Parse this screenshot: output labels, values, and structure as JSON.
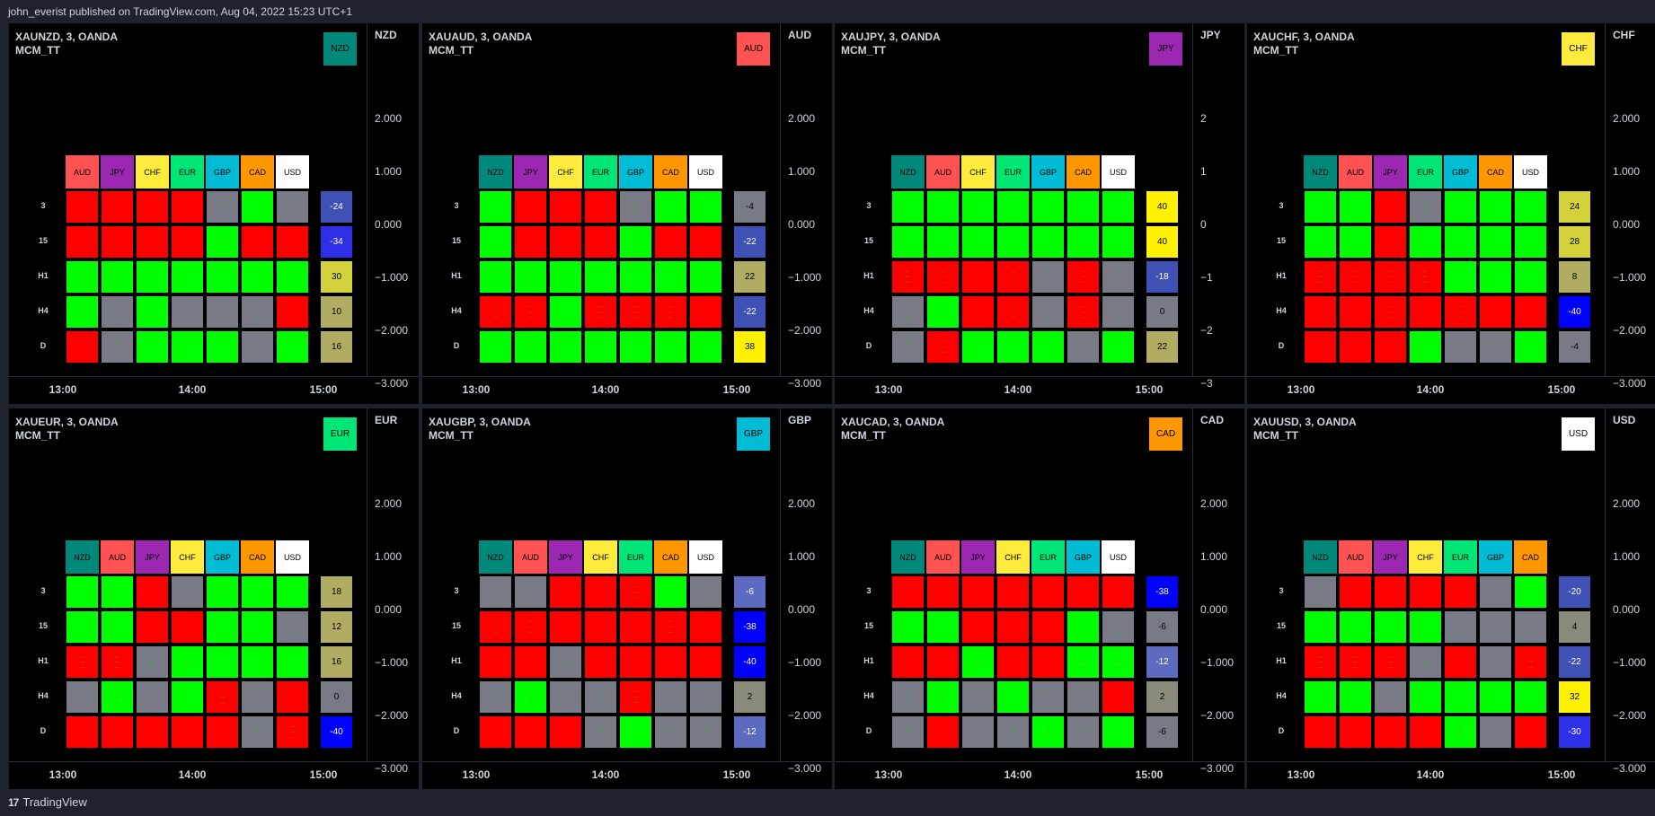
{
  "header": {
    "published": "john_everist published on TradingView.com, Aug 04, 2022 15:23 UTC+1"
  },
  "footer": {
    "brand": "TradingView",
    "logo": "17"
  },
  "colors": {
    "NZD": "#00897b",
    "AUD": "#ff5252",
    "JPY": "#9c27b0",
    "CHF": "#ffeb3b",
    "EUR": "#00e676",
    "GBP": "#00bcd4",
    "CAD": "#ff9800",
    "USD": "#ffffff",
    "G": "#00ff00",
    "R": "#ff0000",
    "N": "#787b86"
  },
  "row_labels": [
    "3",
    "15",
    "H1",
    "H4",
    "D"
  ],
  "time_labels": [
    "13:00",
    "14:00",
    "15:00"
  ],
  "panels": [
    {
      "symbol": "XAUNZD, 3, OANDA",
      "indicator": "MCM_TT",
      "base": "NZD",
      "prices": [
        "2.000",
        "1.000",
        "0.000",
        "−1.000",
        "−2.000",
        "−3.000"
      ],
      "heads": [
        "AUD",
        "JPY",
        "CHF",
        "EUR",
        "GBP",
        "CAD",
        "USD"
      ],
      "grid": [
        "RRRRNGN",
        "RRRRGRR",
        "GGGGGGG",
        "GNGNNNR",
        "RNGGGNG"
      ],
      "marks": [
        "0000101",
        "0000100",
        "1110001",
        "1010110",
        "0100010"
      ],
      "scores": [
        "-24",
        "-34",
        "30",
        "10",
        "16"
      ],
      "score_colors": [
        "#3f51b5",
        "#2f2fe8",
        "#d4d23a",
        "#b0ad62",
        "#b0ad62"
      ]
    },
    {
      "symbol": "XAUAUD, 3, OANDA",
      "indicator": "MCM_TT",
      "base": "AUD",
      "prices": [
        "2.000",
        "1.000",
        "0.000",
        "−1.000",
        "−2.000",
        "−3.000"
      ],
      "heads": [
        "NZD",
        "JPY",
        "CHF",
        "EUR",
        "GBP",
        "CAD",
        "USD"
      ],
      "grid": [
        "GRRRNGG",
        "GRRRGRR",
        "GGGGGGG",
        "RRGRRRR",
        "GGGGGGG"
      ],
      "marks": [
        "0000100",
        "0000100",
        "1110001",
        "1101110",
        "0100000"
      ],
      "scores": [
        "-4",
        "-22",
        "22",
        "-22",
        "38"
      ],
      "score_colors": [
        "#787b86",
        "#3f51b5",
        "#b0ad62",
        "#3f51b5",
        "#fff200"
      ]
    },
    {
      "symbol": "XAUJPY, 3, OANDA",
      "indicator": "MCM_TT",
      "base": "JPY",
      "prices": [
        "2",
        "1",
        "0",
        "−1",
        "−2",
        "−3"
      ],
      "heads": [
        "NZD",
        "AUD",
        "CHF",
        "EUR",
        "GBP",
        "CAD",
        "USD"
      ],
      "grid": [
        "GGGGGGG",
        "GGGGGGG",
        "RRRRNRN",
        "NGRRNRN",
        "NRGGGNG"
      ],
      "marks": [
        "0000000",
        "0000000",
        "1101111",
        "1101111",
        "1100010"
      ],
      "scores": [
        "40",
        "40",
        "-18",
        "0",
        "22"
      ],
      "score_colors": [
        "#fff200",
        "#fff200",
        "#3f51b5",
        "#787b86",
        "#b0ad62"
      ]
    },
    {
      "symbol": "XAUCHF, 3, OANDA",
      "indicator": "MCM_TT",
      "base": "CHF",
      "prices": [
        "2.000",
        "1.000",
        "0.000",
        "−1.000",
        "−2.000",
        "−3.000"
      ],
      "heads": [
        "NZD",
        "AUD",
        "JPY",
        "EUR",
        "GBP",
        "CAD",
        "USD"
      ],
      "grid": [
        "GGRNGGG",
        "GGRGGGG",
        "RRRRGGG",
        "RRRRRRR",
        "RRRGNNG"
      ],
      "marks": [
        "0001000",
        "0000000",
        "1111000",
        "0010100",
        "0000110"
      ],
      "scores": [
        "24",
        "28",
        "8",
        "-40",
        "-4"
      ],
      "score_colors": [
        "#d4d23a",
        "#d4d23a",
        "#b0ad62",
        "#0000ff",
        "#787b86"
      ]
    },
    {
      "symbol": "XAUEUR, 3, OANDA",
      "indicator": "MCM_TT",
      "base": "EUR",
      "prices": [
        "2.000",
        "1.000",
        "0.000",
        "−1.000",
        "−2.000",
        "−3.000"
      ],
      "heads": [
        "NZD",
        "AUD",
        "JPY",
        "CHF",
        "GBP",
        "CAD",
        "USD"
      ],
      "grid": [
        "GGRNGGG",
        "GGRRGGN",
        "RRNGGGG",
        "NGNGRNR",
        "RRRRRNR"
      ],
      "marks": [
        "0001100",
        "0000001",
        "1111000",
        "1110110",
        "0000011"
      ],
      "scores": [
        "18",
        "12",
        "16",
        "0",
        "-40"
      ],
      "score_colors": [
        "#b0ad62",
        "#b0ad62",
        "#b0ad62",
        "#787b86",
        "#0000ff"
      ]
    },
    {
      "symbol": "XAUGBP, 3, OANDA",
      "indicator": "MCM_TT",
      "base": "GBP",
      "prices": [
        "2.000",
        "1.000",
        "0.000",
        "−1.000",
        "−2.000",
        "−3.000"
      ],
      "heads": [
        "NZD",
        "AUD",
        "JPY",
        "CHF",
        "EUR",
        "CAD",
        "USD"
      ],
      "grid": [
        "NNRRRGN",
        "RRRRRRR",
        "RRNRRRR",
        "NGNNRNN",
        "RRRNGNN"
      ],
      "marks": [
        "1100101",
        "1100010",
        "0010000",
        "1111111",
        "0001011"
      ],
      "scores": [
        "-6",
        "-38",
        "-40",
        "2",
        "-12"
      ],
      "score_colors": [
        "#5c6bc0",
        "#0000ff",
        "#0000ff",
        "#8a8a7a",
        "#5c6bc0"
      ]
    },
    {
      "symbol": "XAUCAD, 3, OANDA",
      "indicator": "MCM_TT",
      "base": "CAD",
      "prices": [
        "2.000",
        "1.000",
        "0.000",
        "−1.000",
        "−2.000",
        "−3.000"
      ],
      "heads": [
        "NZD",
        "AUD",
        "JPY",
        "CHF",
        "EUR",
        "GBP",
        "USD"
      ],
      "grid": [
        "RRRRRRR",
        "GGRRRGN",
        "RRGRRGG",
        "NGNGNNR",
        "NRNNGNG"
      ],
      "marks": [
        "0000000",
        "0000011",
        "0010011",
        "1110110",
        "1011110"
      ],
      "scores": [
        "-38",
        "-6",
        "-12",
        "2",
        "-6"
      ],
      "score_colors": [
        "#0000ff",
        "#787b86",
        "#5c6bc0",
        "#8a8a7a",
        "#787b86"
      ]
    },
    {
      "symbol": "XAUUSD, 3, OANDA",
      "indicator": "MCM_TT",
      "base": "USD",
      "prices": [
        "2.000",
        "1.000",
        "0.000",
        "−1.000",
        "−2.000",
        "−3.000"
      ],
      "heads": [
        "NZD",
        "AUD",
        "JPY",
        "CHF",
        "EUR",
        "GBP",
        "CAD"
      ],
      "grid": [
        "NRRRRNG",
        "GGGGNNN",
        "RRRNRNR",
        "GGNGGGG",
        "RRRRGNR"
      ],
      "marks": [
        "1000010",
        "0000111",
        "1111011",
        "0010000",
        "0000110"
      ],
      "scores": [
        "-20",
        "4",
        "-22",
        "32",
        "-30"
      ],
      "score_colors": [
        "#3f51b5",
        "#8a8a7a",
        "#3f51b5",
        "#fff200",
        "#2f2fe8"
      ]
    }
  ]
}
